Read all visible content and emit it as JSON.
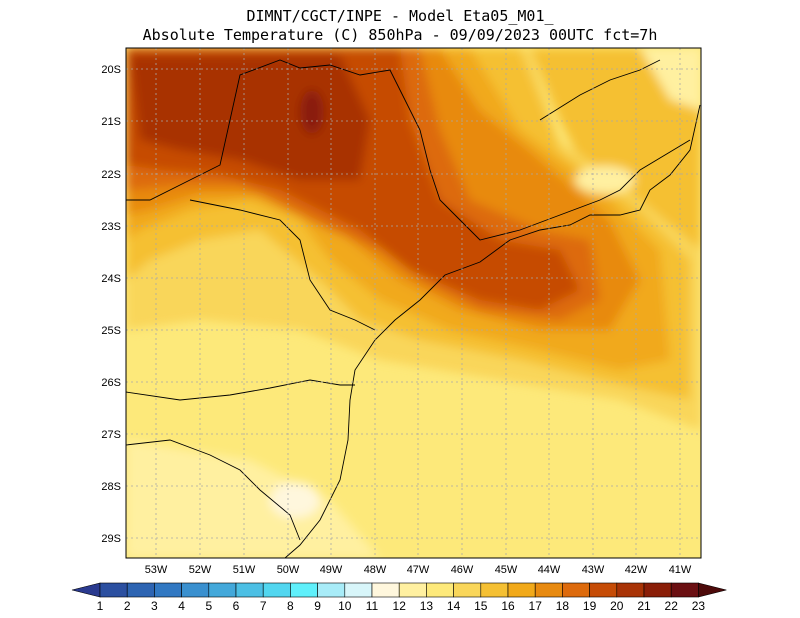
{
  "title": {
    "line1": "DIMNT/CGCT/INPE -  Model Eta05_M01_",
    "line2": "Absolute Temperature (C) 850hPa -  09/09/2023 00UTC fct=7h"
  },
  "map": {
    "variable": "Absolute Temperature (C) 850hPa",
    "lon_labels": [
      "53W",
      "52W",
      "51W",
      "50W",
      "49W",
      "48W",
      "47W",
      "46W",
      "45W",
      "44W",
      "43W",
      "42W",
      "41W"
    ],
    "lat_labels": [
      "20S",
      "21S",
      "22S",
      "23S",
      "24S",
      "25S",
      "26S",
      "27S",
      "28S",
      "29S"
    ]
  },
  "colorbar": {
    "labels": [
      "1",
      "2",
      "3",
      "4",
      "5",
      "6",
      "7",
      "8",
      "9",
      "10",
      "11",
      "12",
      "13",
      "14",
      "15",
      "16",
      "17",
      "18",
      "19",
      "20",
      "21",
      "22",
      "23"
    ],
    "colors": [
      "#2a3a8f",
      "#2b4fa0",
      "#2d64b2",
      "#3178c2",
      "#3a90cf",
      "#43a8da",
      "#4cbfe4",
      "#52d6ef",
      "#5ff0fb",
      "#a8ecf8",
      "#d8f6fa",
      "#fff7dd",
      "#fff0a0",
      "#fde97a",
      "#f9d65a",
      "#f5c033",
      "#f1a91a",
      "#e88a10",
      "#dd6a0c",
      "#c64c06",
      "#a83306",
      "#8a1e08",
      "#6b0f12",
      "#4d0a0a"
    ]
  }
}
